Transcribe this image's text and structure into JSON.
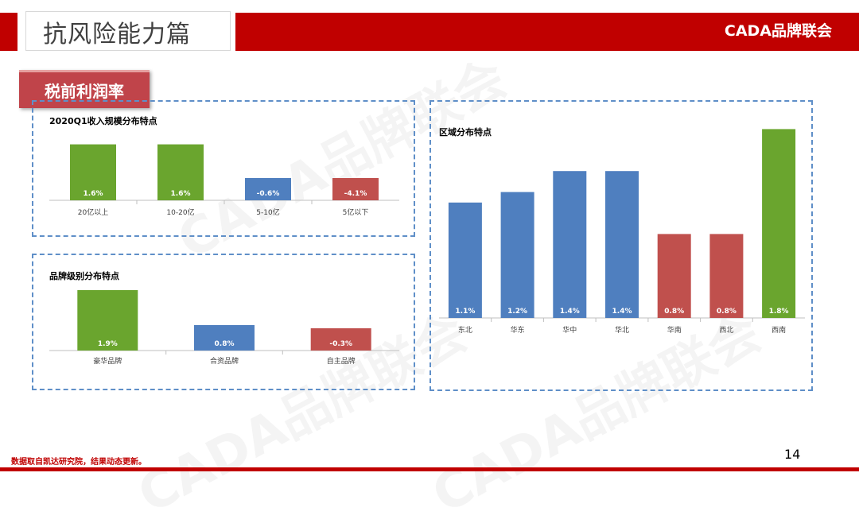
{
  "header": {
    "title": "抗风险能力篇",
    "brand": "CADA品牌联会"
  },
  "section_tag": "税前利润率",
  "footnote": "数据取自凯达研究院，结果动态更新。",
  "page_number": "14",
  "watermark": "CADA品牌联会",
  "colors": {
    "green": "#6aa52e",
    "blue": "#4f7fbf",
    "red": "#c0504d",
    "accent": "#c00000"
  },
  "chart_data": [
    {
      "type": "bar",
      "title": "2020Q1收入规模分布特点",
      "categories": [
        "20亿以上",
        "10-20亿",
        "5-10亿",
        "5亿以下"
      ],
      "values": [
        1.6,
        1.6,
        -0.6,
        -4.1
      ],
      "labels": [
        "1.6%",
        "1.6%",
        "-0.6%",
        "-4.1%"
      ],
      "colors": [
        "green",
        "green",
        "blue",
        "red"
      ]
    },
    {
      "type": "bar",
      "title": "品牌级别分布特点",
      "categories": [
        "豪华品牌",
        "合资品牌",
        "自主品牌"
      ],
      "values": [
        1.9,
        0.8,
        -0.3
      ],
      "labels": [
        "1.9%",
        "0.8%",
        "-0.3%"
      ],
      "colors": [
        "green",
        "blue",
        "red"
      ]
    },
    {
      "type": "bar",
      "title": "区域分布特点",
      "categories": [
        "东北",
        "华东",
        "华中",
        "华北",
        "华南",
        "西北",
        "西南"
      ],
      "values": [
        1.1,
        1.2,
        1.4,
        1.4,
        0.8,
        0.8,
        1.8
      ],
      "labels": [
        "1.1%",
        "1.2%",
        "1.4%",
        "1.4%",
        "0.8%",
        "0.8%",
        "1.8%"
      ],
      "colors": [
        "blue",
        "blue",
        "blue",
        "blue",
        "red",
        "red",
        "green"
      ]
    }
  ]
}
